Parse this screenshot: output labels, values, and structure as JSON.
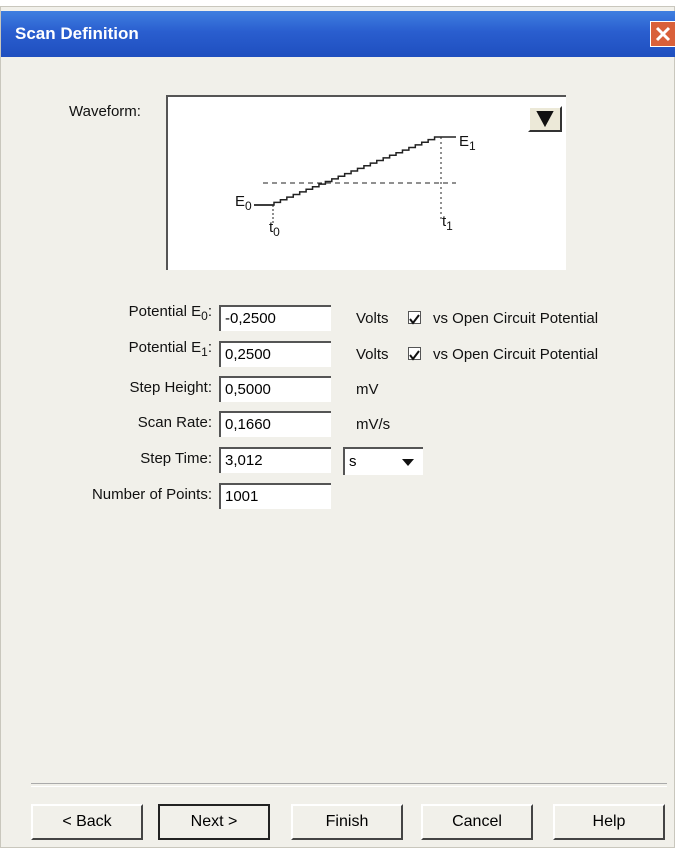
{
  "title": "Scan Definition",
  "waveform": {
    "label": "Waveform:",
    "e0": {
      "base": "E",
      "sub": "0"
    },
    "e1": {
      "base": "E",
      "sub": "1"
    },
    "t0": {
      "base": "t",
      "sub": "0"
    },
    "t1": {
      "base": "t",
      "sub": "1"
    }
  },
  "fields": [
    {
      "label": "Potential E",
      "label_sub": "0",
      "label_end": ":",
      "value": "-0,2500",
      "unit": "Volts",
      "checkbox": {
        "label": "vs Open Circuit Potential",
        "checked": true
      }
    },
    {
      "label": "Potential E",
      "label_sub": "1",
      "label_end": ":",
      "value": "0,2500",
      "unit": "Volts",
      "checkbox": {
        "label": "vs Open Circuit Potential",
        "checked": true
      }
    },
    {
      "label": "Step Height:",
      "value": "0,5000",
      "unit": "mV"
    },
    {
      "label": "Scan Rate:",
      "value": "0,1660",
      "unit": "mV/s"
    },
    {
      "label": "Step Time:",
      "value": "3,012",
      "select": "s"
    },
    {
      "label": "Number of Points:",
      "value": "1001"
    }
  ],
  "buttons": [
    "< Back",
    "Next >",
    "Finish",
    "Cancel",
    "Help"
  ]
}
